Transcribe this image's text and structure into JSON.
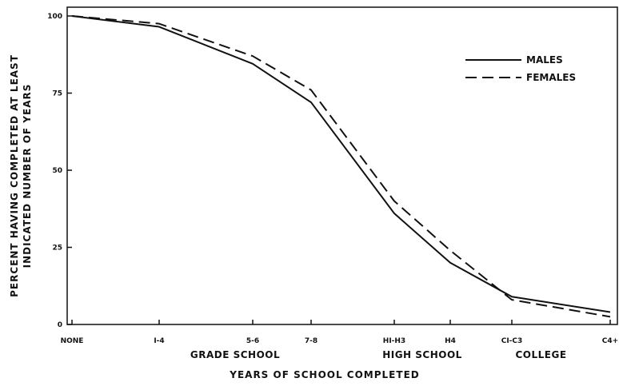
{
  "chart_data": {
    "type": "line",
    "title": "",
    "xlabel": "YEARS OF SCHOOL COMPLETED",
    "ylabel_line1": "PERCENT HAVING COMPLETED AT LEAST",
    "ylabel_line2": "INDICATED NUMBER OF YEARS",
    "categories": [
      "NONE",
      "I-4",
      "5-6",
      "7-8",
      "HI-H3",
      "H4",
      "CI-C3",
      "C4+"
    ],
    "category_groups": [
      {
        "label": "GRADE SCHOOL",
        "from": 1,
        "to": 3
      },
      {
        "label": "HIGH SCHOOL",
        "from": 4,
        "to": 5
      },
      {
        "label": "COLLEGE",
        "from": 6,
        "to": 7
      }
    ],
    "ylim": [
      0,
      100
    ],
    "yticks": [
      "0",
      "25",
      "50",
      "75",
      "100"
    ],
    "grid": false,
    "legend_position": "top-right",
    "series": [
      {
        "name": "MALES",
        "style": "solid",
        "values": [
          100,
          96.5,
          84.5,
          72,
          36,
          20,
          9,
          4
        ]
      },
      {
        "name": "FEMALES",
        "style": "dashed",
        "values": [
          100,
          97.5,
          87,
          76,
          40,
          24,
          8,
          2.5
        ]
      }
    ],
    "colors": {
      "line": "#111111",
      "background": "#ffffff"
    }
  }
}
